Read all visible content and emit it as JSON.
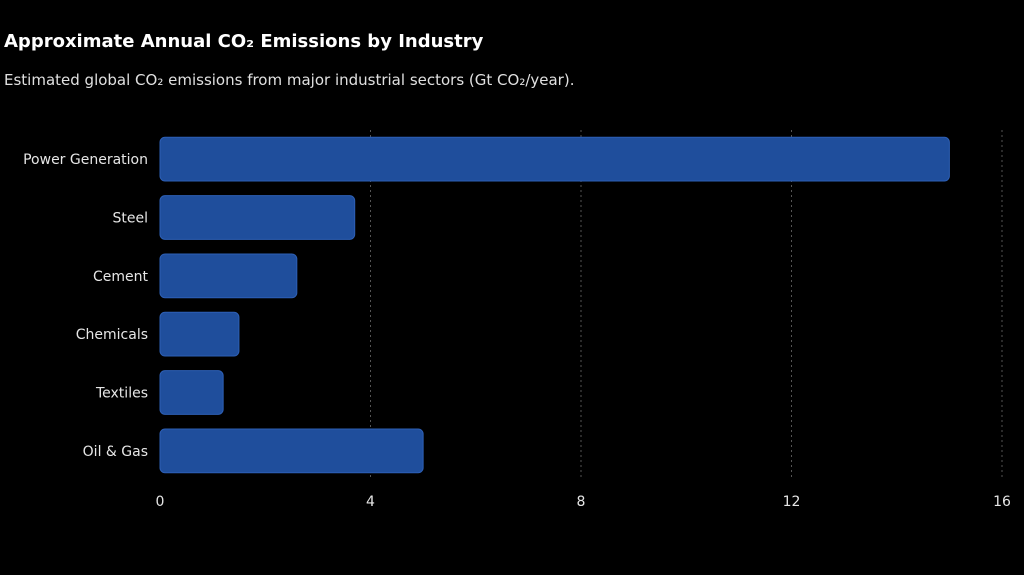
{
  "chart_data": {
    "type": "bar",
    "orientation": "horizontal",
    "title": "Approximate Annual CO₂ Emissions by Industry",
    "subtitle": "Estimated global CO₂ emissions from major industrial sectors (Gt CO₂/year).",
    "categories": [
      "Power Generation",
      "Steel",
      "Cement",
      "Chemicals",
      "Textiles",
      "Oil & Gas"
    ],
    "values": [
      15,
      3.7,
      2.6,
      1.5,
      1.2,
      5
    ],
    "xlim": [
      0,
      16
    ],
    "xticks": [
      0,
      4,
      8,
      12,
      16
    ],
    "xlabel": "",
    "ylabel": "",
    "grid": "vertical dashed",
    "legend": "none"
  },
  "colors": {
    "background": "#000000",
    "bar": "#1f4e9c",
    "bar_edge": "#2d5fb5",
    "grid": "#555555",
    "text": "#e6e6e6"
  }
}
